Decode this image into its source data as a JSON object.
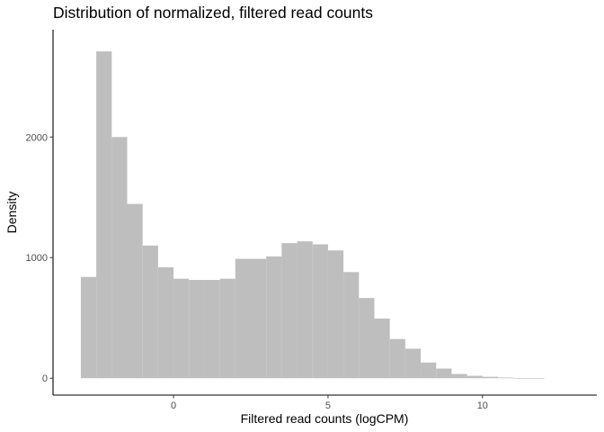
{
  "chart_data": {
    "type": "bar",
    "subtype": "histogram",
    "title": "Distribution of normalized, filtered read counts",
    "xlabel": "Filtered read counts (logCPM)",
    "ylabel": "Density",
    "xlim": [
      -3.9,
      13.7
    ],
    "ylim": [
      -140,
      2890
    ],
    "xticks": [
      0,
      5,
      10
    ],
    "yticks": [
      0,
      1000,
      2000
    ],
    "grid": false,
    "bar_color": "#bebebe",
    "bin_width": 0.5,
    "series": [
      {
        "bin_starts": [
          -3.0,
          -2.5,
          -2.0,
          -1.5,
          -1.0,
          -0.5,
          0.0,
          0.5,
          1.0,
          1.5,
          2.0,
          2.5,
          3.0,
          3.5,
          4.0,
          4.5,
          5.0,
          5.5,
          6.0,
          6.5,
          7.0,
          7.5,
          8.0,
          8.5,
          9.0,
          9.5,
          10.0,
          10.5,
          11.0,
          11.5
        ],
        "values": [
          840,
          2710,
          2000,
          1445,
          1100,
          920,
          825,
          815,
          815,
          825,
          990,
          990,
          1010,
          1120,
          1135,
          1110,
          1060,
          880,
          665,
          495,
          325,
          245,
          130,
          80,
          35,
          20,
          12,
          6,
          0,
          0
        ]
      }
    ]
  }
}
